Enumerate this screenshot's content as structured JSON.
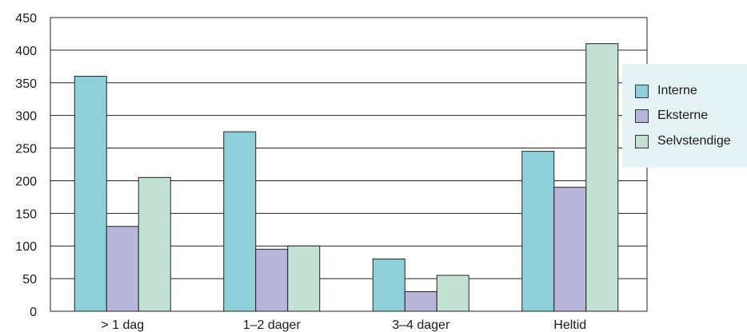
{
  "chart_data": {
    "type": "bar",
    "title": "",
    "xlabel": "",
    "ylabel": "",
    "categories": [
      "> 1 dag",
      "1–2 dager",
      "3–4 dager",
      "Heltid"
    ],
    "series": [
      {
        "name": "Interne",
        "values": [
          360,
          275,
          80,
          245
        ],
        "color": "#8dd0da"
      },
      {
        "name": "Eksterne",
        "values": [
          130,
          95,
          30,
          190
        ],
        "color": "#b7b5da"
      },
      {
        "name": "Selvstendige",
        "values": [
          205,
          100,
          55,
          410
        ],
        "color": "#c3e2d3"
      }
    ],
    "ylim": [
      0,
      450
    ],
    "yticks": [
      "0",
      "50",
      "100",
      "150",
      "200",
      "250",
      "300",
      "350",
      "400",
      "450"
    ],
    "grid": true,
    "legend": {
      "position": "right",
      "background": "#e5f3f4"
    }
  }
}
